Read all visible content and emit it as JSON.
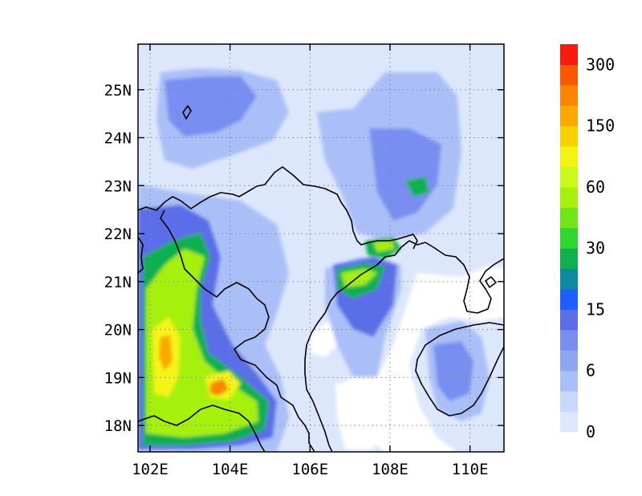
{
  "map": {
    "lon_range": [
      101.7,
      110.85
    ],
    "lat_range": [
      17.45,
      25.95
    ],
    "lon_ticks": [
      {
        "value": 102,
        "label": "102E"
      },
      {
        "value": 104,
        "label": "104E"
      },
      {
        "value": 106,
        "label": "106E"
      },
      {
        "value": 108,
        "label": "108E"
      },
      {
        "value": 110,
        "label": "110E"
      }
    ],
    "lat_ticks": [
      {
        "value": 18,
        "label": "18N"
      },
      {
        "value": 19,
        "label": "19N"
      },
      {
        "value": 20,
        "label": "20N"
      },
      {
        "value": 21,
        "label": "21N"
      },
      {
        "value": 22,
        "label": "22N"
      },
      {
        "value": 23,
        "label": "23N"
      },
      {
        "value": 24,
        "label": "24N"
      },
      {
        "value": 25,
        "label": "25N"
      }
    ],
    "gridlines": "dotted",
    "colorbar": {
      "placement": "right",
      "labels": [
        "0",
        "6",
        "15",
        "30",
        "60",
        "150",
        "300"
      ],
      "colors": [
        "#dde8fb",
        "#c8d8fa",
        "#aabff7",
        "#8ea6f2",
        "#788ef0",
        "#5a6ee8",
        "#1e5eff",
        "#0c8aa0",
        "#10b050",
        "#2ed62e",
        "#6ee618",
        "#a6f010",
        "#ccf81c",
        "#f4f414",
        "#f8d200",
        "#fba800",
        "#fb8400",
        "#f85800",
        "#f81c0c"
      ]
    },
    "features": [
      "coastline",
      "country-borders",
      "precipitation-contours"
    ]
  }
}
